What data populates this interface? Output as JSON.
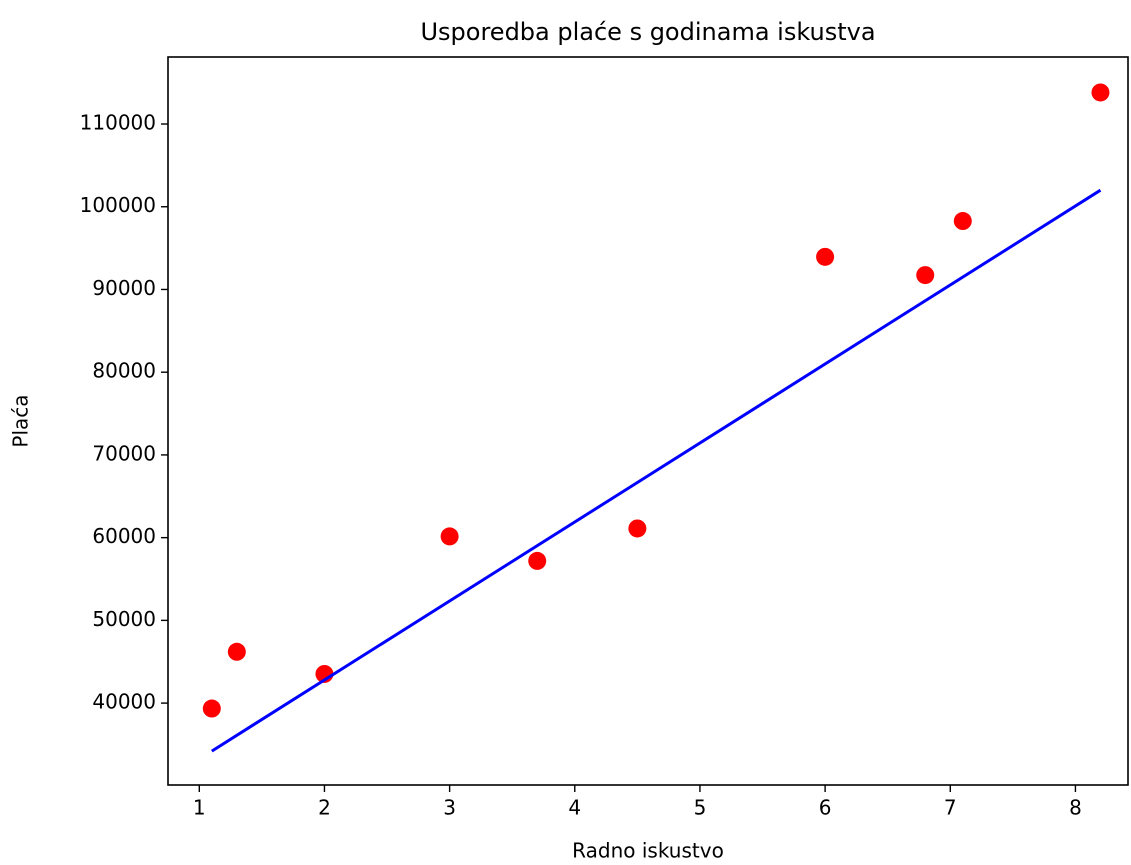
{
  "chart_data": {
    "type": "scatter",
    "title": "Usporedba plaće s godinama iskustva",
    "xlabel": "Radno iskustvo",
    "ylabel": "Plaća",
    "series": [
      {
        "kind": "scatter",
        "color": "#ff0000",
        "x": [
          1.1,
          1.3,
          2.0,
          3.0,
          3.7,
          4.5,
          6.0,
          6.8,
          7.1,
          8.2
        ],
        "values": [
          39343,
          46205,
          43525,
          60150,
          57189,
          61111,
          93940,
          91738,
          98273,
          113812
        ]
      },
      {
        "kind": "line",
        "color": "#0000ff",
        "x": [
          1.1,
          8.2
        ],
        "values": [
          34200,
          102000
        ]
      }
    ],
    "xlim": [
      0.75,
      8.42
    ],
    "ylim": [
      30100,
      118100
    ],
    "xticks": [
      1,
      2,
      3,
      4,
      5,
      6,
      7,
      8
    ],
    "yticks": [
      40000,
      50000,
      60000,
      70000,
      80000,
      90000,
      100000,
      110000
    ]
  }
}
